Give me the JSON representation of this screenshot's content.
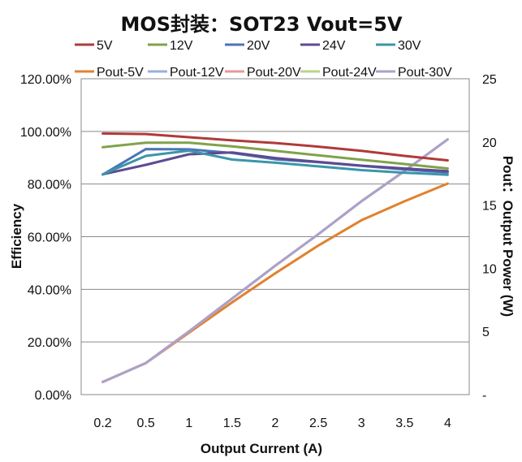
{
  "chart_data": {
    "type": "line",
    "title": "MOS封装：SOT23 Vout=5V",
    "xlabel": "Output Current (A)",
    "ylabel": "Efficiency",
    "y2label": "Pout：Output Power (W)",
    "categories": [
      "0.2",
      "0.5",
      "1",
      "1.5",
      "2",
      "2.5",
      "3",
      "3.5",
      "4"
    ],
    "y_ticks": [
      "0.00%",
      "20.00%",
      "40.00%",
      "60.00%",
      "80.00%",
      "100.00%",
      "120.00%"
    ],
    "y2_ticks": [
      "-",
      "5",
      "10",
      "15",
      "20",
      "25"
    ],
    "ylim": [
      0,
      120
    ],
    "y2lim": [
      0,
      25
    ],
    "grid": true,
    "legend_position": "top",
    "series": [
      {
        "name": "5V",
        "axis": "left",
        "color": "#B03A3A",
        "values": [
          99.2,
          99.0,
          97.8,
          96.6,
          95.6,
          94.2,
          92.6,
          90.7,
          89.0
        ]
      },
      {
        "name": "12V",
        "axis": "left",
        "color": "#7FA34A",
        "values": [
          94.0,
          95.7,
          95.7,
          94.3,
          92.6,
          90.9,
          89.2,
          87.6,
          85.9
        ]
      },
      {
        "name": "20V",
        "axis": "left",
        "color": "#4A75B5",
        "values": [
          83.6,
          93.3,
          93.2,
          91.8,
          89.4,
          88.3,
          86.9,
          85.5,
          84.4
        ]
      },
      {
        "name": "24V",
        "axis": "left",
        "color": "#5E4A91",
        "values": [
          83.7,
          87.3,
          91.3,
          92.0,
          89.9,
          88.4,
          87.0,
          85.9,
          84.9
        ]
      },
      {
        "name": "30V",
        "axis": "left",
        "color": "#3B95AA",
        "values": [
          83.7,
          90.7,
          92.7,
          89.3,
          88.1,
          86.7,
          85.3,
          84.3,
          83.5
        ]
      },
      {
        "name": "Pout-5V",
        "axis": "right",
        "color": "#E0822E",
        "values": [
          1.0,
          2.5,
          4.9,
          7.3,
          9.6,
          11.8,
          13.8,
          15.3,
          16.7
        ]
      },
      {
        "name": "Pout-12V",
        "axis": "right",
        "color": "#95B1DC",
        "values": [
          1.0,
          2.5,
          5.0,
          7.6,
          10.2,
          12.7,
          15.3,
          17.7,
          20.2
        ]
      },
      {
        "name": "Pout-20V",
        "axis": "right",
        "color": "#E69A96",
        "values": [
          1.0,
          2.5,
          5.0,
          7.6,
          10.2,
          12.7,
          15.3,
          17.7,
          20.2
        ]
      },
      {
        "name": "Pout-24V",
        "axis": "right",
        "color": "#B7D48A",
        "values": [
          1.0,
          2.5,
          5.0,
          7.6,
          10.2,
          12.7,
          15.3,
          17.7,
          20.2
        ]
      },
      {
        "name": "Pout-30V",
        "axis": "right",
        "color": "#AE9FCC",
        "values": [
          1.0,
          2.5,
          5.0,
          7.6,
          10.2,
          12.7,
          15.3,
          17.7,
          20.2
        ]
      }
    ]
  }
}
